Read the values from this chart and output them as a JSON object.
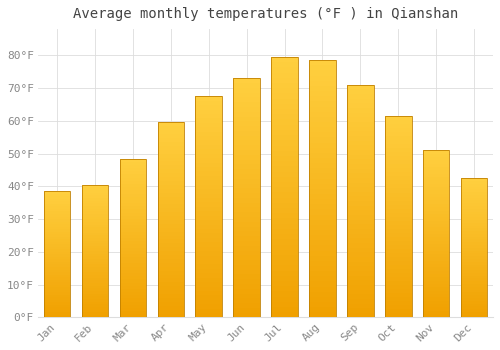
{
  "title": "Average monthly temperatures (°F ) in Qianshan",
  "months": [
    "Jan",
    "Feb",
    "Mar",
    "Apr",
    "May",
    "Jun",
    "Jul",
    "Aug",
    "Sep",
    "Oct",
    "Nov",
    "Dec"
  ],
  "values": [
    38.5,
    40.5,
    48.5,
    59.5,
    67.5,
    73.0,
    79.5,
    78.5,
    71.0,
    61.5,
    51.0,
    42.5
  ],
  "bar_color_bottom": "#F0A000",
  "bar_color_top": "#FFD040",
  "bar_edge_color": "#C08000",
  "background_color": "#FFFFFF",
  "grid_color": "#DDDDDD",
  "text_color": "#888888",
  "ylim": [
    0,
    88
  ],
  "yticks": [
    0,
    10,
    20,
    30,
    40,
    50,
    60,
    70,
    80
  ],
  "ytick_labels": [
    "0°F",
    "10°F",
    "20°F",
    "30°F",
    "40°F",
    "50°F",
    "60°F",
    "70°F",
    "80°F"
  ],
  "title_fontsize": 10,
  "tick_fontsize": 8,
  "font_family": "monospace"
}
